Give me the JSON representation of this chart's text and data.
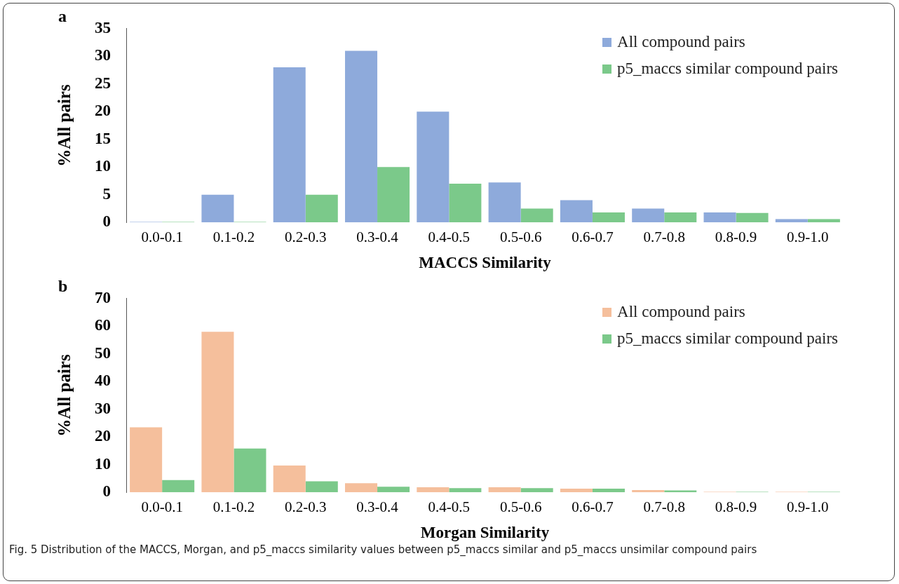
{
  "chart_data": [
    {
      "type": "bar",
      "xlabel": "MACCS Similarity",
      "ylabel": "%All pairs",
      "annotations": [
        "a"
      ],
      "categories": [
        "0.0-0.1",
        "0.1-0.2",
        "0.2-0.3",
        "0.3-0.4",
        "0.4-0.5",
        "0.5-0.6",
        "0.6-0.7",
        "0.7-0.8",
        "0.8-0.9",
        "0.9-1.0"
      ],
      "series": [
        {
          "name": "All compound pairs",
          "color": "#8eaadb",
          "values": [
            0.1,
            5,
            28,
            31,
            20,
            7.2,
            4,
            2.5,
            1.8,
            0.6
          ]
        },
        {
          "name": "p5_maccs similar compound pairs",
          "color": "#7bc98a",
          "values": [
            0.1,
            0.1,
            5,
            10,
            7,
            2.5,
            1.8,
            1.8,
            1.7,
            0.6
          ]
        }
      ],
      "ylim": [
        0,
        35
      ],
      "yticks": [
        0,
        5,
        10,
        15,
        20,
        25,
        30,
        35
      ],
      "grid": false,
      "legend": "top right"
    },
    {
      "type": "bar",
      "xlabel": "Morgan Similarity",
      "ylabel": "%All pairs",
      "annotations": [
        "b",
        "Fig. 5  Distribution of the MACCS, Morgan, and p5_maccs similarity values between p5_maccs similar and p5_maccs unsimilar compound pairs"
      ],
      "categories": [
        "0.0-0.1",
        "0.1-0.2",
        "0.2-0.3",
        "0.3-0.4",
        "0.4-0.5",
        "0.5-0.6",
        "0.6-0.7",
        "0.7-0.8",
        "0.8-0.9",
        "0.9-1.0"
      ],
      "series": [
        {
          "name": "All compound pairs",
          "color": "#f5bf9c",
          "values": [
            23.5,
            58,
            9.7,
            3.3,
            1.8,
            1.8,
            1.3,
            0.8,
            0.2,
            0.2
          ]
        },
        {
          "name": "p5_maccs similar compound pairs",
          "color": "#7bc98a",
          "values": [
            4.4,
            15.8,
            4,
            2,
            1.5,
            1.5,
            1.3,
            0.7,
            0.2,
            0.2
          ]
        }
      ],
      "ylim": [
        0,
        70
      ],
      "yticks": [
        0,
        10,
        20,
        30,
        40,
        50,
        60,
        70
      ],
      "grid": false,
      "legend": "top right"
    }
  ]
}
